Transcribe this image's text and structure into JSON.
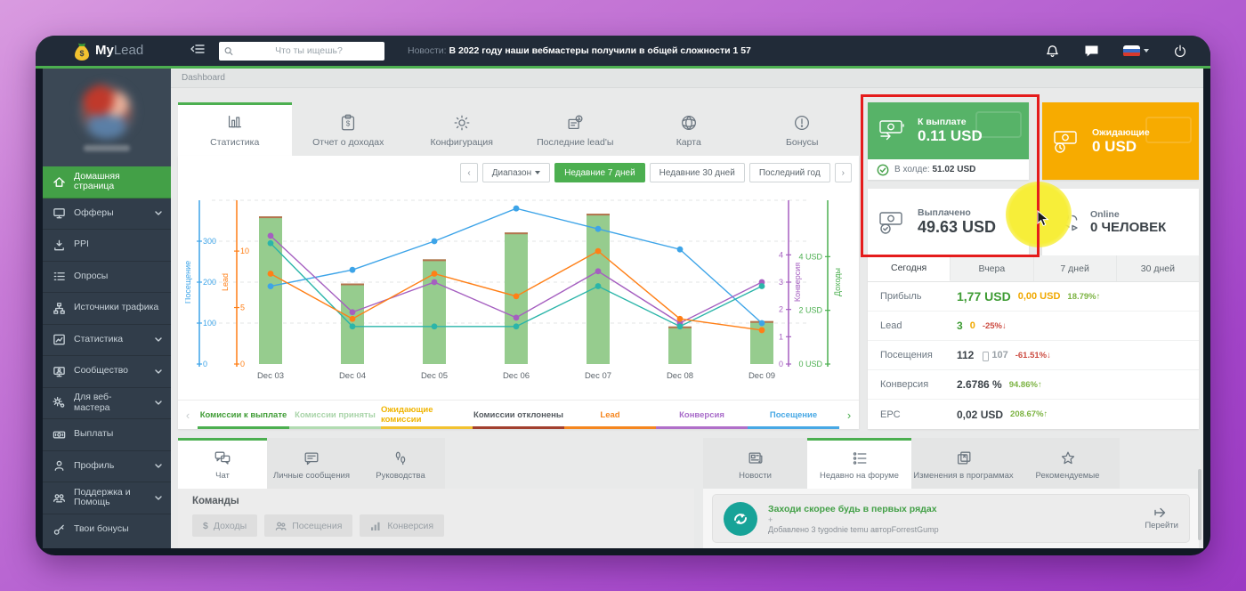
{
  "topbar": {
    "search_placeholder": "Что ты ищешь?",
    "news_label": "Новости:",
    "news_text": "В 2022 году наши вебмастеры получили в общей сложности 1 57",
    "logo_my": "My",
    "logo_lead": "Lead"
  },
  "breadcrumb": "Dashboard",
  "sidebar": {
    "items": [
      {
        "label": "Домашняя страница"
      },
      {
        "label": "Офферы"
      },
      {
        "label": "PPI"
      },
      {
        "label": "Опросы"
      },
      {
        "label": "Источники трафика"
      },
      {
        "label": "Статистика"
      },
      {
        "label": "Сообщество"
      },
      {
        "label": "Для веб-мастера"
      },
      {
        "label": "Выплаты"
      },
      {
        "label": "Профиль"
      },
      {
        "label": "Поддержка и Помощь"
      },
      {
        "label": "Твои бонусы"
      }
    ]
  },
  "main_tabs": [
    {
      "label": "Статистика"
    },
    {
      "label": "Отчет о доходах"
    },
    {
      "label": "Конфигурация"
    },
    {
      "label": "Последние lead'ы"
    },
    {
      "label": "Карта"
    },
    {
      "label": "Бонусы"
    }
  ],
  "range": {
    "dropdown": "Диапазон",
    "buttons": [
      {
        "label": "Недавние 7 дней"
      },
      {
        "label": "Недавние 30 дней"
      },
      {
        "label": "Последний год"
      }
    ]
  },
  "chart_data": {
    "type": "mixed-bar-line",
    "x": [
      "Dec 03",
      "Dec 04",
      "Dec 05",
      "Dec 06",
      "Dec 07",
      "Dec 08",
      "Dec 09"
    ],
    "bars": {
      "name": "Комиссии к выплате",
      "axis": "revenue",
      "values": [
        5.5,
        3.0,
        3.9,
        4.9,
        5.6,
        1.4,
        1.6
      ],
      "color": "#96cc8e",
      "top_color": "#b5734e"
    },
    "series": [
      {
        "name": "Посещение",
        "axis": "visits",
        "color": "#3da4e8",
        "values": [
          190,
          230,
          300,
          380,
          330,
          280,
          100
        ]
      },
      {
        "name": "Конверсия",
        "axis": "conversion",
        "color": "#a55fc0",
        "values": [
          4.7,
          1.9,
          3.0,
          1.7,
          3.4,
          1.5,
          3.0
        ]
      },
      {
        "name": "Комиссии приняты",
        "axis": "revenue",
        "color": "#2bb5a9",
        "values": [
          4.5,
          1.4,
          1.4,
          1.4,
          2.9,
          1.4,
          2.9
        ]
      },
      {
        "name": "Lead",
        "axis": "lead",
        "color": "#ff7f16",
        "values": [
          8,
          4,
          8,
          6,
          10,
          4,
          3
        ]
      }
    ],
    "axes": {
      "visits": {
        "title": "Посещение",
        "color": "#3da4e8",
        "ticks": [
          0,
          100,
          200,
          300
        ],
        "max": 400,
        "suffix": ""
      },
      "lead": {
        "title": "Lead",
        "color": "#ff7f16",
        "ticks": [
          0,
          5,
          10
        ],
        "max": 14.5,
        "suffix": ""
      },
      "conversion": {
        "title": "Конверсия",
        "color": "#a55fc0",
        "ticks": [
          0,
          1,
          2,
          3,
          4
        ],
        "max": 6,
        "suffix": ""
      },
      "revenue": {
        "title": "Доходы",
        "color": "#4caf50",
        "ticks": [
          0,
          2,
          4
        ],
        "max": 6.1,
        "suffix": " USD"
      }
    },
    "grid": "dashed horizontal"
  },
  "legend": [
    {
      "label": "Комиссии к выплате",
      "text": "#3f9c35",
      "bar": "#4caf50"
    },
    {
      "label": "Комиссии приняты",
      "text": "#a9d4a9",
      "bar": "#b2dcb2"
    },
    {
      "label": "Ожидающие комиссии",
      "text": "#f0b400",
      "bar": "#f2c230"
    },
    {
      "label": "Комиссии отклонены",
      "text": "#555b60",
      "bar": "#a2402f"
    },
    {
      "label": "Lead",
      "text": "#f5861f",
      "bar": "#f5861f"
    },
    {
      "label": "Конверсия",
      "text": "#a86bc9",
      "bar": "#b06fc9"
    },
    {
      "label": "Посещение",
      "text": "#47a8e5",
      "bar": "#47a8e5"
    }
  ],
  "cards": {
    "payout": {
      "title": "К выплате",
      "value": "0.11 USD",
      "bg": "#57b368"
    },
    "hold": {
      "label": "В холде:",
      "value": "51.02 USD"
    },
    "pending": {
      "title": "Ожидающие",
      "value": "0 USD",
      "bg": "#f7ab00"
    },
    "paid": {
      "title": "Выплачено",
      "value": "49.63 USD"
    },
    "online": {
      "title": "Online",
      "value": "0 ЧЕЛОВЕК"
    }
  },
  "stats": {
    "tabs": [
      "Сегодня",
      "Вчера",
      "7 дней",
      "30 дней"
    ],
    "rows": [
      {
        "label": "Прибыль",
        "main": "1,77 USD",
        "main_color": "#3f9c35",
        "secondary": "0,00 USD",
        "secondary_color": "#f0a800",
        "change": "18.79%",
        "arrow": "↑",
        "change_color": "#7cb342"
      },
      {
        "label": "Lead",
        "main": "3",
        "main_color": "#3f9c35",
        "secondary": "0",
        "secondary_color": "#f0a800",
        "change": "-25%",
        "arrow": "↓",
        "change_color": "#cc4b41"
      },
      {
        "label": "Посещения",
        "main": "112",
        "main_color": "#3b4248",
        "secondary": "107",
        "secondary_color": "#9aa1a7",
        "change": "-61.51%",
        "arrow": "↓",
        "change_color": "#cc4b41"
      },
      {
        "label": "Конверсия",
        "main": "2.6786 %",
        "main_color": "#3b4248",
        "secondary": "",
        "secondary_color": "",
        "change": "94.86%",
        "arrow": "↑",
        "change_color": "#7cb342"
      },
      {
        "label": "EPC",
        "main": "0,02 USD",
        "main_color": "#3b4248",
        "secondary": "",
        "secondary_color": "",
        "change": "208.67%",
        "arrow": "↑",
        "change_color": "#7cb342"
      }
    ]
  },
  "bottom_tabs_left": [
    {
      "label": "Чат"
    },
    {
      "label": "Личные сообщения"
    },
    {
      "label": "Руководства"
    }
  ],
  "bottom_tabs_right": [
    {
      "label": "Новости"
    },
    {
      "label": "Недавно на форуме"
    },
    {
      "label": "Изменения в программах"
    },
    {
      "label": "Рекомендуемые"
    }
  ],
  "teams": {
    "title": "Команды",
    "buttons": [
      {
        "label": "Доходы"
      },
      {
        "label": "Посещения"
      },
      {
        "label": "Конверсия"
      }
    ]
  },
  "forum": {
    "title": "Заходи скорее будь в первых рядах",
    "plus": "+",
    "meta": "Добавлено 3 tygodnie temu авторForrestGump",
    "go": "Перейти"
  }
}
